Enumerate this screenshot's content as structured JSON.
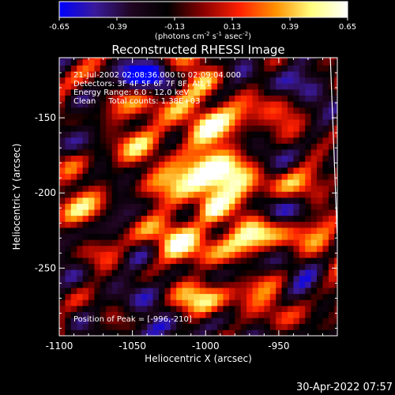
{
  "colorbar": {
    "tick_labels": [
      "-0.65",
      "-0.39",
      "-0.13",
      "0.13",
      "0.39",
      "0.65"
    ],
    "range": [
      -0.65,
      0.65
    ],
    "units_prefix": "(photons cm",
    "units_exp1": "-2",
    "units_mid": " s",
    "units_exp2": "-1",
    "units_mid2": " asec",
    "units_exp3": "-2",
    "units_suffix": ")",
    "colors": [
      "#0000ff",
      "#3a1a9a",
      "#200520",
      "#000000",
      "#8a0000",
      "#ff2000",
      "#ff9000",
      "#ffff80",
      "#ffffff"
    ]
  },
  "chart_data": {
    "type": "heatmap",
    "title": "Reconstructed RHESSI Image",
    "xlabel": "Heliocentric X (arcsec)",
    "ylabel": "Heliocentric Y (arcsec)",
    "xlim": [
      -1100,
      -910
    ],
    "ylim": [
      -295,
      -110
    ],
    "x_ticks": [
      "-1100",
      "-1050",
      "-1000",
      "-950"
    ],
    "x_tick_values": [
      -1100,
      -1050,
      -1000,
      -950
    ],
    "y_ticks": [
      "-150",
      "-200",
      "-250"
    ],
    "y_tick_values": [
      -150,
      -200,
      -250
    ],
    "peak": {
      "x": -996,
      "y": -210,
      "value": 0.65
    },
    "limb_line": [
      [
        -915,
        -105
      ],
      [
        -910,
        -230
      ]
    ],
    "annotations": [
      "21-Jul-2002 02:08:36.000 to 02:09:04.000",
      "Detectors: 3F 4F 5F 6F 7F 8F, Att 1",
      "Energy Range: 6.0 - 12.0 keV",
      "Clean     Total counts: 1.38E+03"
    ],
    "peak_label": "Position of Peak = [-996,-210]"
  },
  "footer": {
    "timestamp": "30-Apr-2022 07:57"
  }
}
